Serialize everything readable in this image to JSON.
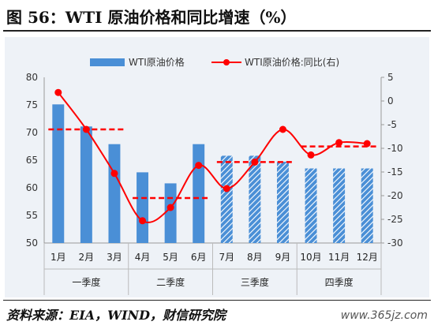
{
  "title": "图 56：WTI 原油价格和同比增速（%）",
  "source": "资料来源：EIA，WIND，财信研究院",
  "watermark": "www.365jz.com",
  "colors": {
    "bar": "#4a8fd6",
    "line": "#ff0000",
    "quarter_avg": "#ff0000",
    "hatch_stripe": "#ffffff"
  },
  "legend": {
    "bar_label": "WTI原油价格",
    "line_label": "WTI原油价格:同比(右)",
    "placement": "top"
  },
  "chart_data": {
    "type": "bar+line",
    "categories": [
      "1月",
      "2月",
      "3月",
      "4月",
      "5月",
      "6月",
      "7月",
      "8月",
      "9月",
      "10月",
      "11月",
      "12月"
    ],
    "groups": [
      {
        "label": "一季度",
        "members": [
          0,
          1,
          2
        ]
      },
      {
        "label": "二季度",
        "members": [
          3,
          4,
          5
        ]
      },
      {
        "label": "三季度",
        "members": [
          6,
          7,
          8
        ]
      },
      {
        "label": "四季度",
        "members": [
          9,
          10,
          11
        ]
      }
    ],
    "hatched_from_index": 6,
    "series": [
      {
        "name": "WTI原油价格",
        "type": "bar",
        "axis": "left",
        "values": [
          75.1,
          71.1,
          67.9,
          62.8,
          60.8,
          67.9,
          65.8,
          65.8,
          64.7,
          63.5,
          63.5,
          63.5
        ]
      },
      {
        "name": "WTI原油价格:同比(右)",
        "type": "line",
        "axis": "right",
        "values": [
          1.8,
          -6.0,
          -15.3,
          -25.3,
          -22.5,
          -13.6,
          -18.5,
          -12.9,
          -6.0,
          -11.4,
          -8.8,
          -9.0
        ]
      }
    ],
    "quarter_averages": [
      -6.0,
      -20.5,
      -12.9,
      -9.6
    ],
    "y_left": {
      "min": 50,
      "max": 80,
      "ticks": [
        "50",
        "55",
        "60",
        "65",
        "70",
        "75",
        "80"
      ]
    },
    "y_right": {
      "min": -30,
      "max": 5,
      "ticks": [
        "-30",
        "-25",
        "-20",
        "-15",
        "-10",
        "-5",
        "0",
        "5"
      ]
    },
    "grid": false
  }
}
